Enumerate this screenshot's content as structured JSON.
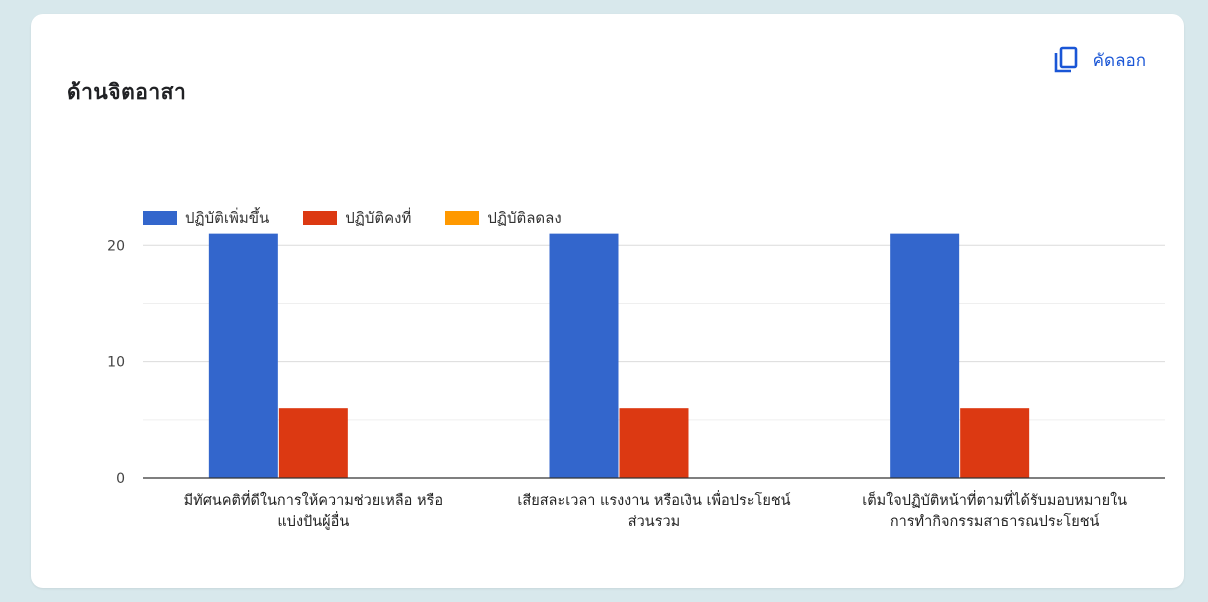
{
  "card": {
    "title": "ด้านจิตอาสา",
    "copy_label": "คัดลอก",
    "copy_icon": "copy-icon"
  },
  "colors": {
    "accent": "#1a56d6",
    "series": [
      "#3366cc",
      "#dc3912",
      "#ff9900"
    ]
  },
  "chart_data": {
    "type": "bar",
    "title": "ด้านจิตอาสา",
    "xlabel": "",
    "ylabel": "",
    "ylim": [
      0,
      22
    ],
    "yticks": [
      0,
      10,
      20
    ],
    "grid": true,
    "legend": "top-left",
    "categories": [
      [
        "มีทัศนคติที่ดีในการให้ความช่วยเหลือ หรือ",
        "แบ่งปันผู้อื่น"
      ],
      [
        "เสียสละเวลา แรงงาน หรือเงิน เพื่อประโยชน์",
        "ส่วนรวม"
      ],
      [
        "เต็มใจปฏิบัติหน้าที่ตามที่ได้รับมอบหมายใน",
        "การทำกิจกรรมสาธารณประโยชน์"
      ]
    ],
    "series": [
      {
        "name": "ปฏิบัติเพิ่มขึ้น",
        "values": [
          21,
          21,
          21
        ]
      },
      {
        "name": "ปฏิบัติคงที่",
        "values": [
          6,
          6,
          6
        ]
      },
      {
        "name": "ปฏิบัติลดลง",
        "values": [
          0,
          0,
          0
        ]
      }
    ]
  }
}
